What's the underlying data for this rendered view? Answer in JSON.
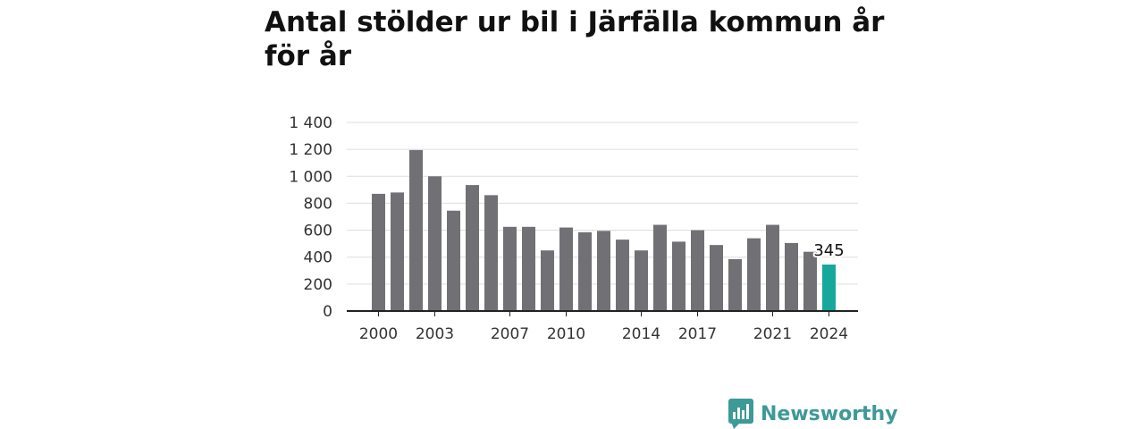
{
  "title": "Antal stölder ur bil i Järfälla kommun år för år",
  "brand": {
    "name": "Newsworthy",
    "color": "#3d9a96"
  },
  "colors": {
    "bar": "#717074",
    "highlight": "#16a89b",
    "grid": "#dddddd",
    "axis": "#222222"
  },
  "chart_data": {
    "type": "bar",
    "title": "Antal stölder ur bil i Järfälla kommun år för år",
    "xlabel": "",
    "ylabel": "",
    "categories": [
      2000,
      2001,
      2002,
      2003,
      2004,
      2005,
      2006,
      2007,
      2008,
      2009,
      2010,
      2011,
      2012,
      2013,
      2014,
      2015,
      2016,
      2017,
      2018,
      2019,
      2020,
      2021,
      2022,
      2023,
      2024
    ],
    "values": [
      870,
      880,
      1195,
      1000,
      745,
      935,
      860,
      625,
      625,
      450,
      620,
      585,
      595,
      530,
      450,
      640,
      515,
      600,
      490,
      385,
      540,
      640,
      505,
      440,
      345
    ],
    "ylim": [
      0,
      1400
    ],
    "yticks": [
      0,
      200,
      400,
      600,
      800,
      1000,
      1200,
      1400
    ],
    "ytick_labels": [
      "0",
      "200",
      "400",
      "600",
      "800",
      "1 000",
      "1 200",
      "1 400"
    ],
    "xtick_labels": [
      "2000",
      "2003",
      "2007",
      "2010",
      "2014",
      "2017",
      "2021",
      "2024"
    ],
    "highlight_category": 2024,
    "annotation": "345",
    "grid": true
  }
}
